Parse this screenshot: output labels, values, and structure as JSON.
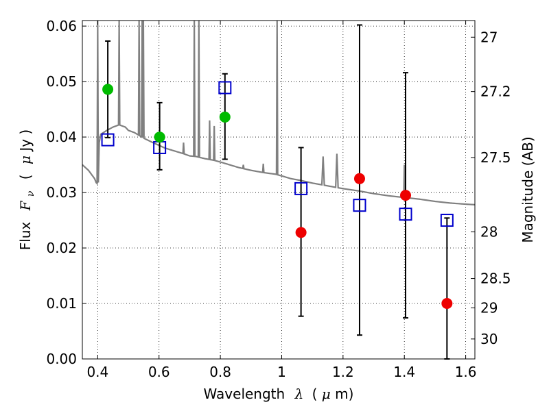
{
  "chart_data": {
    "type": "scatter",
    "xlabel": {
      "prefix": "Wavelength",
      "symbol": "λ",
      "unit_open": "(",
      "unit_mu": "μ",
      "unit_rest": "m)"
    },
    "ylabel": {
      "prefix": "Flux",
      "symbol": "F",
      "subscript": "ν",
      "unit_open": "(",
      "unit_mu": "μ",
      "unit_rest": "Jy )"
    },
    "y2label": "Magnitude (AB)",
    "xlim": [
      0.35,
      1.63
    ],
    "ylim": [
      0.0,
      0.061
    ],
    "x_ticks": [
      0.4,
      0.6,
      0.8,
      1.0,
      1.2,
      1.4,
      1.6
    ],
    "x_tick_labels": [
      "0.4",
      "0.6",
      "0.8",
      "1",
      "1.2",
      "1.4",
      "1.6"
    ],
    "y_ticks": [
      0.0,
      0.01,
      0.02,
      0.03,
      0.04,
      0.05,
      0.06
    ],
    "y_tick_labels": [
      "0.00",
      "0.01",
      "0.02",
      "0.03",
      "0.04",
      "0.05",
      "0.06"
    ],
    "y2_ticks": [
      {
        "flux": 0.058,
        "label": "27"
      },
      {
        "flux": 0.0482,
        "label": "27.2"
      },
      {
        "flux": 0.0363,
        "label": "27.5"
      },
      {
        "flux": 0.0229,
        "label": "28"
      },
      {
        "flux": 0.0145,
        "label": "28.5"
      },
      {
        "flux": 0.0092,
        "label": "29"
      },
      {
        "flux": 0.0036,
        "label": "30"
      }
    ],
    "grid": true,
    "grid_style": "dotted",
    "model_sed": {
      "color": "#808080",
      "continuum": [
        [
          0.35,
          0.035
        ],
        [
          0.37,
          0.034
        ],
        [
          0.39,
          0.0325
        ],
        [
          0.395,
          0.0318
        ],
        [
          0.4,
          0.0315
        ],
        [
          0.402,
          0.0318
        ],
        [
          0.405,
          0.039
        ],
        [
          0.41,
          0.0405
        ],
        [
          0.43,
          0.0412
        ],
        [
          0.45,
          0.0418
        ],
        [
          0.47,
          0.0422
        ],
        [
          0.49,
          0.0418
        ],
        [
          0.5,
          0.0412
        ],
        [
          0.52,
          0.0408
        ],
        [
          0.55,
          0.0398
        ],
        [
          0.58,
          0.039
        ],
        [
          0.6,
          0.0385
        ],
        [
          0.62,
          0.038
        ],
        [
          0.65,
          0.0375
        ],
        [
          0.68,
          0.037
        ],
        [
          0.7,
          0.0366
        ],
        [
          0.72,
          0.0365
        ],
        [
          0.75,
          0.0361
        ],
        [
          0.78,
          0.0358
        ],
        [
          0.8,
          0.0355
        ],
        [
          0.83,
          0.035
        ],
        [
          0.86,
          0.0345
        ],
        [
          0.9,
          0.034
        ],
        [
          0.94,
          0.0336
        ],
        [
          0.98,
          0.0333
        ],
        [
          1.0,
          0.033
        ],
        [
          1.03,
          0.0325
        ],
        [
          1.06,
          0.0322
        ],
        [
          1.1,
          0.0317
        ],
        [
          1.14,
          0.0313
        ],
        [
          1.2,
          0.0307
        ],
        [
          1.25,
          0.0303
        ],
        [
          1.3,
          0.0298
        ],
        [
          1.35,
          0.0294
        ],
        [
          1.4,
          0.0291
        ],
        [
          1.45,
          0.0288
        ],
        [
          1.5,
          0.0284
        ],
        [
          1.55,
          0.0281
        ],
        [
          1.6,
          0.0279
        ],
        [
          1.63,
          0.0278
        ]
      ],
      "emission_lines": [
        {
          "x": 0.4,
          "peak": 0.061,
          "width": 0.002
        },
        {
          "x": 0.47,
          "peak": 0.061,
          "width": 0.002
        },
        {
          "x": 0.535,
          "peak": 0.061,
          "width": 0.002
        },
        {
          "x": 0.545,
          "peak": 0.061,
          "width": 0.002
        },
        {
          "x": 0.549,
          "peak": 0.061,
          "width": 0.002
        },
        {
          "x": 0.715,
          "peak": 0.061,
          "width": 0.002
        },
        {
          "x": 0.73,
          "peak": 0.061,
          "width": 0.002
        },
        {
          "x": 0.985,
          "peak": 0.061,
          "width": 0.002
        },
        {
          "x": 0.68,
          "peak": 0.039,
          "width": 0.002
        },
        {
          "x": 0.765,
          "peak": 0.043,
          "width": 0.002
        },
        {
          "x": 0.78,
          "peak": 0.042,
          "width": 0.002
        },
        {
          "x": 0.875,
          "peak": 0.035,
          "width": 0.002
        },
        {
          "x": 0.94,
          "peak": 0.0352,
          "width": 0.002
        },
        {
          "x": 1.135,
          "peak": 0.0365,
          "width": 0.004
        },
        {
          "x": 1.18,
          "peak": 0.037,
          "width": 0.004
        },
        {
          "x": 1.4,
          "peak": 0.035,
          "width": 0.002
        }
      ]
    },
    "model_points": {
      "marker": "open-square",
      "color": "#0000cc",
      "x": [
        0.433,
        0.602,
        0.815,
        1.063,
        1.254,
        1.404,
        1.539
      ],
      "y": [
        0.0395,
        0.0381,
        0.0489,
        0.0307,
        0.0277,
        0.0261,
        0.025
      ]
    },
    "observed_optical": {
      "marker": "filled-circle",
      "color": "#00bb00",
      "x": [
        0.433,
        0.602,
        0.815
      ],
      "y": [
        0.0486,
        0.04,
        0.0436
      ],
      "yerr_low": [
        0.0399,
        0.0341,
        0.036
      ],
      "yerr_high": [
        0.0573,
        0.0462,
        0.0514
      ]
    },
    "observed_nir": {
      "marker": "filled-circle",
      "color": "#ee0000",
      "x": [
        1.063,
        1.254,
        1.404,
        1.539
      ],
      "y": [
        0.0228,
        0.0325,
        0.0295,
        0.01
      ],
      "yerr_low": [
        0.0077,
        0.0043,
        0.0074,
        0.0
      ],
      "yerr_high": [
        0.0381,
        0.0602,
        0.0516,
        0.0254
      ]
    }
  }
}
